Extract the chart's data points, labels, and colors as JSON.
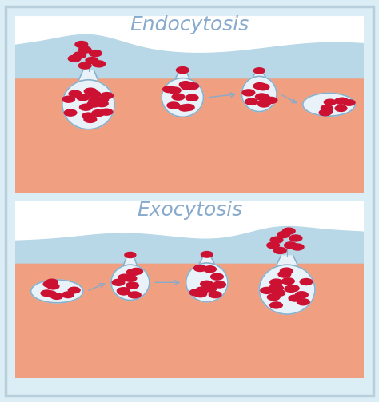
{
  "title_endo": "Endocytosis",
  "title_exo": "Exocytosis",
  "outer_bg": "#dceef5",
  "panel_bg": "#ffffff",
  "skin_color": "#f0a080",
  "fluid_color": "#b8d8e8",
  "vesicle_fill": "#e8f2f8",
  "vesicle_border": "#88b0cc",
  "dot_color": "#cc1133",
  "arrow_color": "#88aacc",
  "title_color": "#88aacc",
  "title_fontsize": 18,
  "border_color": "#b8d0dc"
}
